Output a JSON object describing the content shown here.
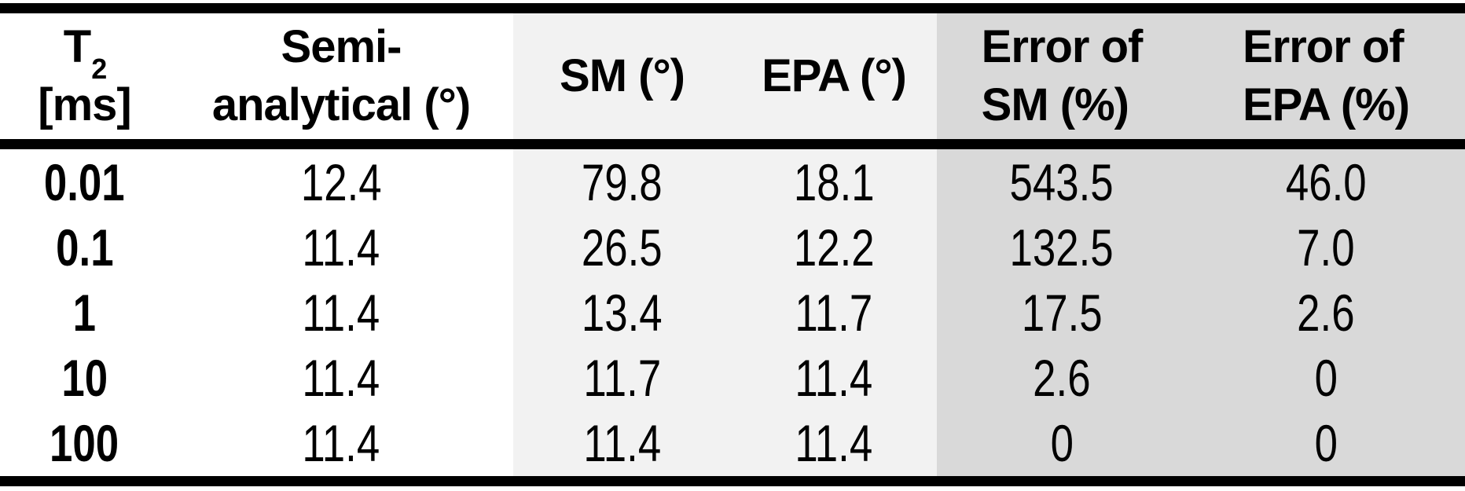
{
  "colors": {
    "background": "#ffffff",
    "band_light": "#f2f2f2",
    "band_dark": "#d9d9d9",
    "rule": "#000000",
    "text": "#000000"
  },
  "table": {
    "headers": [
      {
        "line1": "T",
        "sub": "2",
        "line2": "[ms]",
        "bold_data_column": true
      },
      {
        "line1": "Semi-",
        "line2": "analytical (°)"
      },
      {
        "label": "SM (°)"
      },
      {
        "label": "EPA (°)"
      },
      {
        "line1": "Error of",
        "line2": "SM (%)"
      },
      {
        "line1": "Error of",
        "line2": "EPA (%)"
      }
    ],
    "rows": [
      [
        "0.01",
        "12.4",
        "79.8",
        "18.1",
        "543.5",
        "46.0"
      ],
      [
        "0.1",
        "11.4",
        "26.5",
        "12.2",
        "132.5",
        "7.0"
      ],
      [
        "1",
        "11.4",
        "13.4",
        "11.7",
        "17.5",
        "2.6"
      ],
      [
        "10",
        "11.4",
        "11.7",
        "11.4",
        "2.6",
        "0"
      ],
      [
        "100",
        "11.4",
        "11.4",
        "11.4",
        "0",
        "0"
      ]
    ]
  }
}
